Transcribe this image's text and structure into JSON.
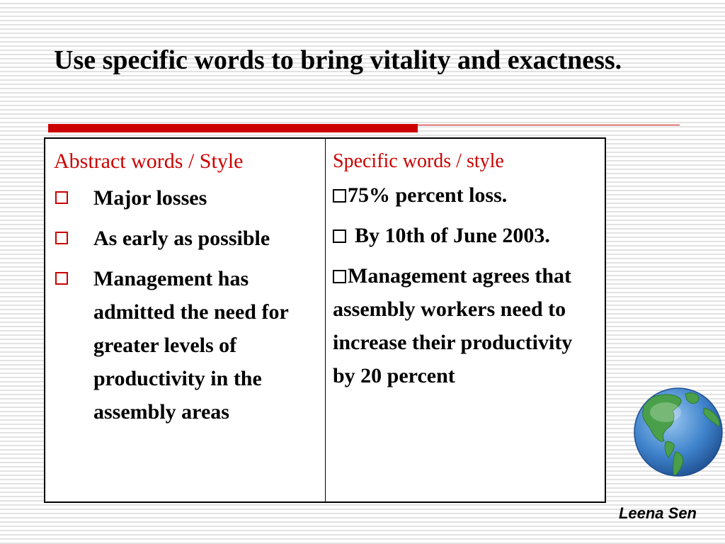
{
  "slide": {
    "title": "Use specific words to bring vitality and exactness.",
    "author": "Leena Sen"
  },
  "table": {
    "left": {
      "header": "Abstract words / Style",
      "items": [
        "Major losses",
        "As early as possible",
        "Management has admitted the need for greater levels of productivity in the assembly areas"
      ]
    },
    "right": {
      "header": "Specific words / style",
      "items": [
        "75% percent loss.",
        "By 10th of June 2003.",
        "Management agrees that assembly workers need to increase their productivity by 20 percent"
      ]
    }
  },
  "colors": {
    "accent": "#cc0000",
    "globe_ocean": "#3f83cc",
    "globe_land": "#4aa04a"
  },
  "icons": {
    "bullet": "square-bullet-icon",
    "globe": "globe-icon"
  }
}
